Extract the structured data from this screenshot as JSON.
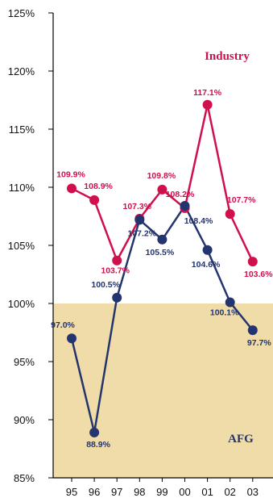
{
  "chart_data": {
    "type": "line",
    "x": [
      "95",
      "96",
      "97",
      "98",
      "99",
      "00",
      "01",
      "02",
      "03"
    ],
    "ylim": [
      85,
      125
    ],
    "yticks": [
      85,
      90,
      95,
      100,
      105,
      110,
      115,
      120,
      125
    ],
    "ytick_labels": [
      "85%",
      "90%",
      "95%",
      "100%",
      "105%",
      "110%",
      "115%",
      "120%",
      "125%"
    ],
    "shaded_below": 100,
    "grid": false,
    "series": [
      {
        "name": "Industry",
        "color": "#d0104c",
        "values": [
          109.9,
          108.9,
          103.7,
          107.3,
          109.8,
          108.2,
          117.1,
          107.7,
          103.6
        ],
        "labels": [
          "109.9%",
          "108.9%",
          "103.7%",
          "107.3%",
          "109.8%",
          "108.2%",
          "117.1%",
          "107.7%",
          "103.6%"
        ]
      },
      {
        "name": "AFG",
        "color": "#23346e",
        "values": [
          97.0,
          88.9,
          100.5,
          107.2,
          105.5,
          108.4,
          104.6,
          100.1,
          97.7
        ],
        "labels": [
          "97.0%",
          "88.9%",
          "100.5%",
          "107.2%",
          "105.5%",
          "108.4%",
          "104.6%",
          "100.1%",
          "97.7%"
        ]
      }
    ]
  },
  "colors": {
    "shade": "#f0dca8",
    "axis": "#000000"
  }
}
